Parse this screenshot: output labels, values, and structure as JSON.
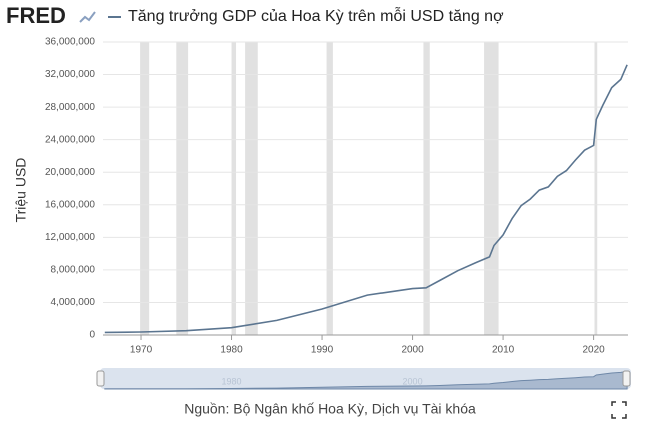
{
  "chart_data": {
    "type": "line",
    "logo": "FRED",
    "title": "Tăng trưởng GDP của Hoa Kỳ trên mỗi USD tăng nợ",
    "y_label": "Triệu USD",
    "source": "Nguồn: Bộ Ngân khố Hoa Kỳ, Dịch vụ Tài khóa",
    "x": [
      1966,
      1970,
      1975,
      1980,
      1985,
      1990,
      1995,
      2000,
      2001.5,
      2003,
      2005,
      2007,
      2008.5,
      2009,
      2010,
      2011,
      2012,
      2013,
      2014,
      2015,
      2016,
      2017,
      2018,
      2019,
      2020,
      2020.3,
      2021,
      2022,
      2023,
      2023.7
    ],
    "series": [
      {
        "name": "Tăng trưởng GDP của Hoa Kỳ trên mỗi USD tăng nợ",
        "color": "#5b7590",
        "values": [
          320000,
          370000,
          530000,
          900000,
          1800000,
          3200000,
          4900000,
          5700000,
          5800000,
          6700000,
          7900000,
          8900000,
          9600000,
          11000000,
          12300000,
          14300000,
          15900000,
          16700000,
          17800000,
          18200000,
          19500000,
          20200000,
          21500000,
          22700000,
          23300000,
          26500000,
          28200000,
          30400000,
          31400000,
          33200000
        ]
      }
    ],
    "recessions": [
      [
        1969.9,
        1970.9
      ],
      [
        1973.9,
        1975.2
      ],
      [
        1980.0,
        1980.5
      ],
      [
        1981.5,
        1982.9
      ],
      [
        1990.5,
        1991.2
      ],
      [
        2001.2,
        2001.9
      ],
      [
        2007.9,
        2009.5
      ],
      [
        2020.1,
        2020.4
      ]
    ],
    "xlim": [
      1965.8,
      2023.8
    ],
    "xticks": [
      1970,
      1980,
      1990,
      2000,
      2010,
      2020
    ],
    "ylim": [
      0,
      36000000
    ],
    "yticks": [
      0,
      {
        "value": 4000000,
        "label": "4,000,000"
      },
      {
        "value": 8000000,
        "label": "8,000,000"
      },
      {
        "value": 12000000,
        "label": "12,000,000"
      },
      {
        "value": 16000000,
        "label": "16,000,000"
      },
      {
        "value": 20000000,
        "label": "20,000,000"
      },
      {
        "value": 24000000,
        "label": "24,000,000"
      },
      {
        "value": 28000000,
        "label": "28,000,000"
      },
      {
        "value": 32000000,
        "label": "32,000,000"
      },
      {
        "value": 36000000,
        "label": "36,000,000"
      }
    ],
    "navigator_ticks": [
      1980,
      2000
    ],
    "grid": true
  }
}
